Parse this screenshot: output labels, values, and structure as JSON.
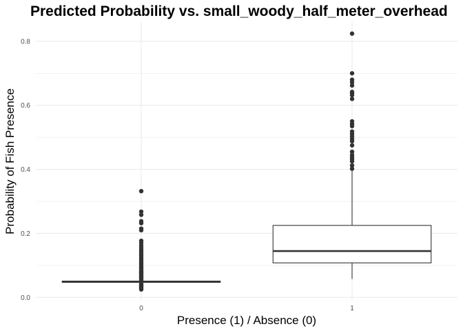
{
  "chart_data": {
    "type": "boxplot",
    "title": "Predicted Probability vs. small_woody_half_meter_overhead",
    "xlabel": "Presence (1) / Absence (0)",
    "ylabel": "Probability of Fish Presence",
    "categories": [
      "0",
      "1"
    ],
    "yticks": [
      "0.0",
      "0.2",
      "0.4",
      "0.6",
      "0.8"
    ],
    "ylim": [
      -0.01,
      0.86
    ],
    "grid": true,
    "colors": {
      "outlier": "#333333",
      "box_line": "#333333",
      "grid": "#ebebeb"
    },
    "boxes": [
      {
        "category": "0",
        "min": 0.047,
        "q1": 0.047,
        "median": 0.049,
        "q3": 0.051,
        "max": 0.052,
        "outliers": [
          0.025,
          0.028,
          0.031,
          0.034,
          0.037,
          0.04,
          0.043,
          0.055,
          0.058,
          0.061,
          0.064,
          0.067,
          0.07,
          0.073,
          0.076,
          0.079,
          0.082,
          0.086,
          0.09,
          0.094,
          0.098,
          0.103,
          0.108,
          0.113,
          0.118,
          0.124,
          0.13,
          0.136,
          0.142,
          0.148,
          0.155,
          0.162,
          0.17,
          0.177,
          0.21,
          0.215,
          0.232,
          0.238,
          0.258,
          0.268,
          0.332
        ]
      },
      {
        "category": "1",
        "min": 0.058,
        "q1": 0.108,
        "median": 0.145,
        "q3": 0.225,
        "max": 0.395,
        "outliers": [
          0.402,
          0.412,
          0.425,
          0.432,
          0.438,
          0.445,
          0.455,
          0.475,
          0.488,
          0.495,
          0.503,
          0.51,
          0.518,
          0.535,
          0.542,
          0.55,
          0.62,
          0.632,
          0.638,
          0.642,
          0.662,
          0.672,
          0.68,
          0.7,
          0.824
        ]
      }
    ]
  }
}
